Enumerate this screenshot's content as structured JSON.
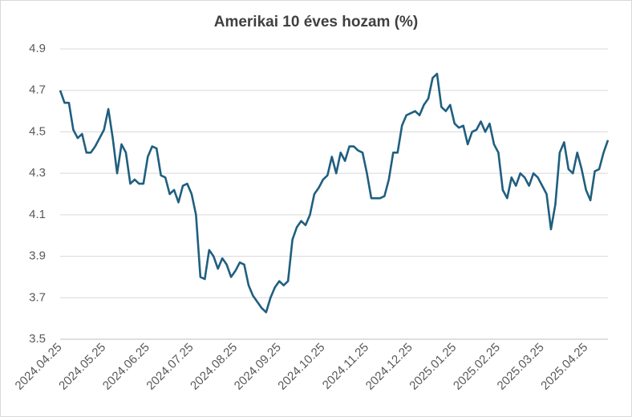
{
  "chart_data": {
    "type": "line",
    "title": "Amerikai 10 éves hozam (%)",
    "categories": [
      "2024.04.25",
      null,
      null,
      null,
      null,
      null,
      null,
      null,
      null,
      null,
      "2024.05.25",
      null,
      null,
      null,
      null,
      null,
      null,
      null,
      null,
      null,
      "2024.06.25",
      null,
      null,
      null,
      null,
      null,
      null,
      null,
      null,
      null,
      "2024.07.25",
      null,
      null,
      null,
      null,
      null,
      null,
      null,
      null,
      null,
      "2024.08.25",
      null,
      null,
      null,
      null,
      null,
      null,
      null,
      null,
      null,
      "2024.09.25",
      null,
      null,
      null,
      null,
      null,
      null,
      null,
      null,
      null,
      "2024.10.25",
      null,
      null,
      null,
      null,
      null,
      null,
      null,
      null,
      null,
      "2024.11.25",
      null,
      null,
      null,
      null,
      null,
      null,
      null,
      null,
      null,
      "2024.12.25",
      null,
      null,
      null,
      null,
      null,
      null,
      null,
      null,
      null,
      "2025.01.25",
      null,
      null,
      null,
      null,
      null,
      null,
      null,
      null,
      null,
      "2025.02.25",
      null,
      null,
      null,
      null,
      null,
      null,
      null,
      null,
      null,
      "2025.03.25",
      null,
      null,
      null,
      null,
      null,
      null,
      null,
      null,
      null,
      "2025.04.25",
      null,
      null,
      null,
      null,
      null
    ],
    "values": [
      4.7,
      4.64,
      4.64,
      4.51,
      4.47,
      4.49,
      4.4,
      4.4,
      4.43,
      4.47,
      4.51,
      4.61,
      4.47,
      4.3,
      4.44,
      4.4,
      4.25,
      4.27,
      4.25,
      4.25,
      4.38,
      4.43,
      4.42,
      4.29,
      4.28,
      4.2,
      4.22,
      4.16,
      4.24,
      4.25,
      4.2,
      4.1,
      3.8,
      3.79,
      3.93,
      3.9,
      3.84,
      3.89,
      3.86,
      3.8,
      3.83,
      3.87,
      3.86,
      3.76,
      3.71,
      3.68,
      3.65,
      3.63,
      3.7,
      3.75,
      3.78,
      3.76,
      3.78,
      3.98,
      4.04,
      4.07,
      4.05,
      4.1,
      4.2,
      4.23,
      4.27,
      4.29,
      4.38,
      4.3,
      4.4,
      4.36,
      4.43,
      4.43,
      4.41,
      4.4,
      4.3,
      4.18,
      4.18,
      4.18,
      4.19,
      4.27,
      4.4,
      4.4,
      4.53,
      4.58,
      4.59,
      4.6,
      4.58,
      4.63,
      4.66,
      4.76,
      4.78,
      4.62,
      4.6,
      4.63,
      4.54,
      4.52,
      4.53,
      4.44,
      4.5,
      4.51,
      4.55,
      4.5,
      4.54,
      4.44,
      4.4,
      4.22,
      4.18,
      4.28,
      4.24,
      4.3,
      4.28,
      4.24,
      4.3,
      4.28,
      4.24,
      4.2,
      4.03,
      4.15,
      4.4,
      4.45,
      4.32,
      4.3,
      4.4,
      4.32,
      4.22,
      4.17,
      4.31,
      4.32,
      4.4,
      4.46
    ],
    "color": "#1f5f7f",
    "ylim": [
      3.5,
      4.9
    ],
    "yticks": [
      3.5,
      3.7,
      3.9,
      4.1,
      4.3,
      4.5,
      4.7,
      4.9
    ],
    "grid": true
  }
}
